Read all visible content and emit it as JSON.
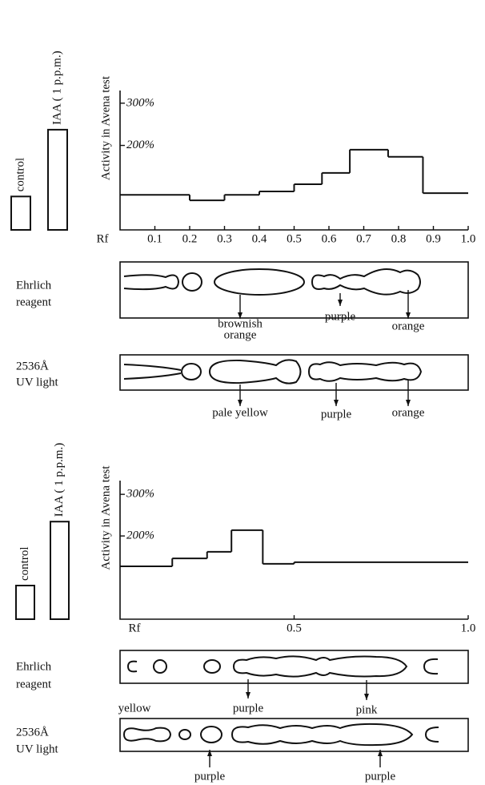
{
  "chart_data": [
    {
      "type": "bar",
      "categories": [
        "control",
        "IAA ( 1 p.p.m.)"
      ],
      "values": [
        100,
        300
      ]
    },
    {
      "type": "histogram",
      "y_label": "Activity in Avena test",
      "x_label": "Rf",
      "bins": [
        0,
        0.2,
        0.3,
        0.4,
        0.5,
        0.58,
        0.66,
        0.77,
        0.87,
        1.0
      ],
      "values": [
        83,
        70,
        83,
        91,
        108,
        135,
        190,
        173,
        87
      ],
      "xlim": [
        0,
        1
      ],
      "xticks": [
        0.1,
        0.2,
        0.3,
        0.4,
        0.5,
        0.6,
        0.7,
        0.8,
        0.9,
        {
          "value": 1,
          "label": "1.0"
        }
      ],
      "ylim": [
        0,
        330
      ],
      "yticks": [
        {
          "value": 200,
          "label": "200%"
        },
        {
          "value": 300,
          "label": "300%"
        }
      ]
    },
    {
      "type": "bar",
      "categories": [
        "control",
        "IAA ( 1 p.p.m.)"
      ],
      "values": [
        100,
        290
      ]
    },
    {
      "type": "histogram",
      "y_label": "Activity in Avena test",
      "x_label": "Rf",
      "bins": [
        0,
        0.15,
        0.25,
        0.32,
        0.41,
        0.5,
        1.0
      ],
      "values": [
        127,
        146,
        162,
        214,
        133,
        137
      ],
      "xlim": [
        0,
        1
      ],
      "xticks": [
        0.5,
        {
          "value": 1,
          "label": "1.0"
        }
      ],
      "ylim": [
        0,
        333
      ],
      "yticks": [
        {
          "value": 200,
          "label": "200%"
        },
        {
          "value": 300,
          "label": "300%"
        }
      ]
    }
  ],
  "chromatograms": [
    {
      "reagent": [
        "Ehrlich",
        "reagent"
      ],
      "spots": [
        {
          "lines": [
            "brownish",
            "orange"
          ]
        },
        {
          "lines": [
            "purple"
          ]
        },
        {
          "lines": [
            "orange"
          ]
        }
      ]
    },
    {
      "reagent": [
        "2536Å",
        "UV light"
      ],
      "spots": [
        {
          "lines": [
            "pale yellow"
          ]
        },
        {
          "lines": [
            "purple"
          ]
        },
        {
          "lines": [
            "orange"
          ]
        }
      ]
    },
    {
      "reagent": [
        "Ehrlich",
        "reagent"
      ],
      "spots": [
        {
          "lines": [
            "yellow"
          ]
        },
        {
          "lines": [
            "purple"
          ]
        },
        {
          "lines": [
            "pink"
          ]
        }
      ]
    },
    {
      "reagent": [
        "2536Å",
        "UV light"
      ],
      "spots": [
        {
          "lines": [
            "purple"
          ]
        },
        {
          "lines": [
            "purple"
          ]
        }
      ]
    }
  ]
}
